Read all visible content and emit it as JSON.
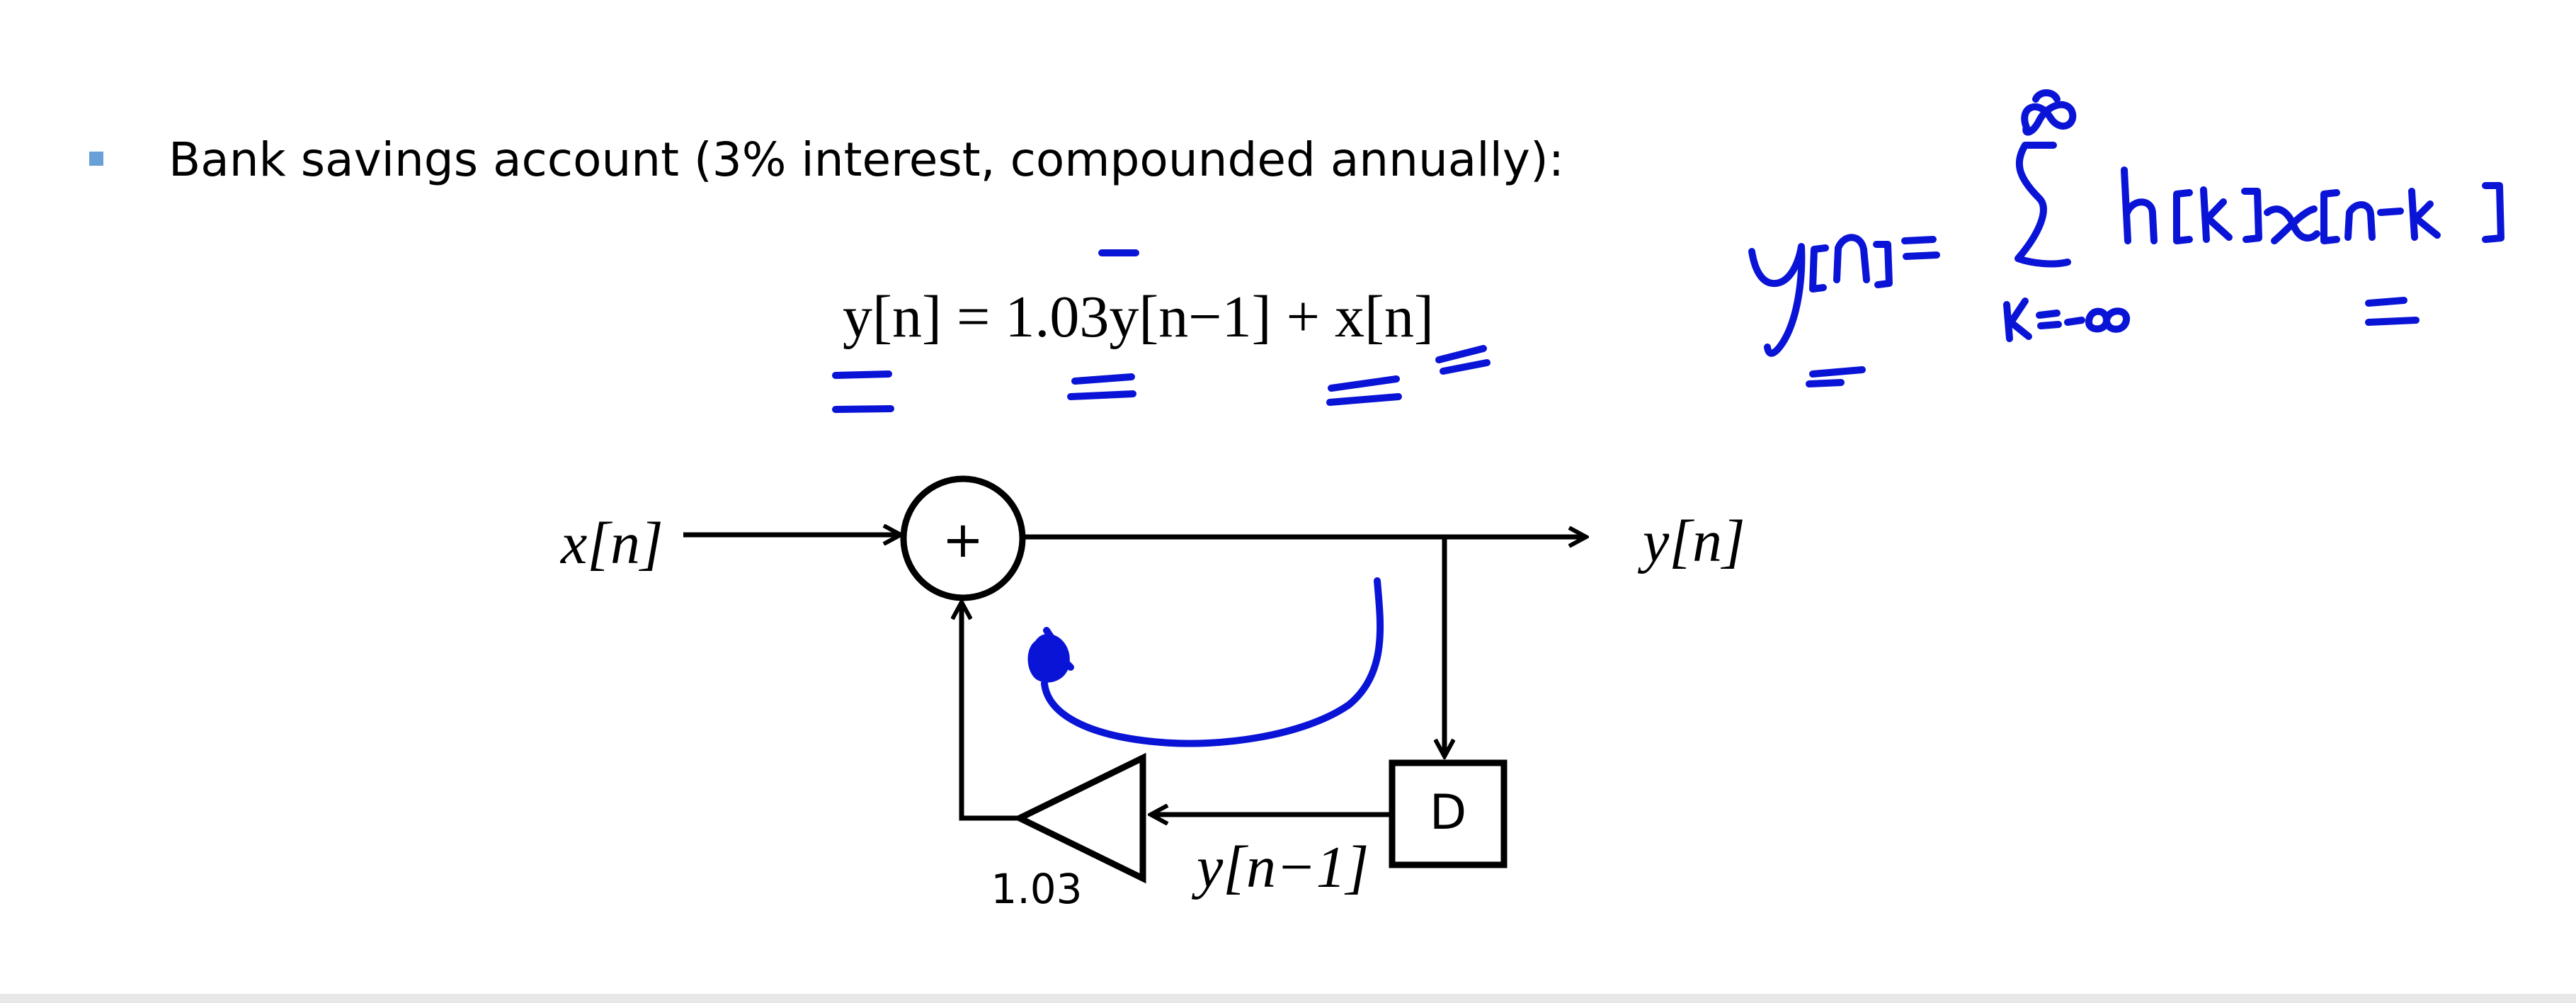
{
  "bullet": {
    "text": "Bank savings account (3% interest, compounded annually):",
    "color": "#6aa0d8"
  },
  "equation": {
    "text": "y[n] = 1.03y[n−1] + x[n]"
  },
  "diagram": {
    "input_label": "x[n]",
    "output_label": "y[n]",
    "adder_symbol": "+",
    "delay_label": "D",
    "feedback_label": "y[n−1]",
    "gain_label": "1.03"
  },
  "annotation": {
    "handwritten_formula": "y[n] = Σ_{k=−∞}^{∞} h[k] x[n−k]",
    "ink_color": "#0a14d6"
  }
}
